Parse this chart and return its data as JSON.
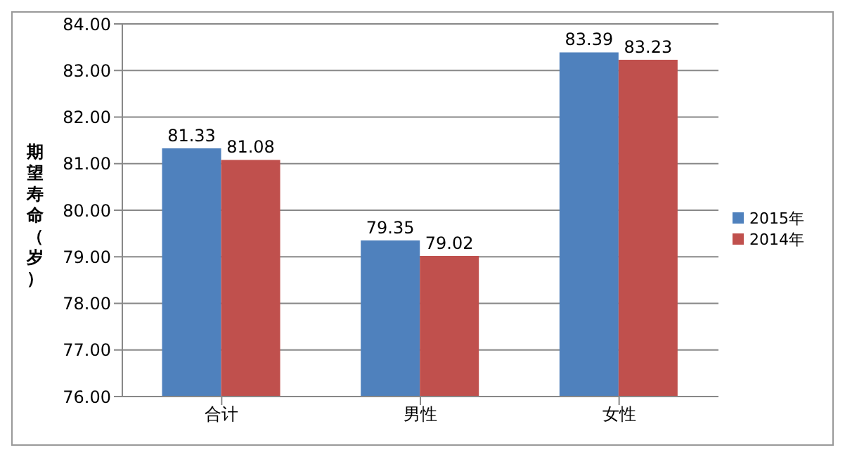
{
  "chart_data": {
    "type": "bar",
    "ylabel": "期望寿命（岁）",
    "categories": [
      "合计",
      "男性",
      "女性"
    ],
    "series": [
      {
        "name": "2015年",
        "color": "#4f81bd",
        "values": [
          81.33,
          79.35,
          83.39
        ]
      },
      {
        "name": "2014年",
        "color": "#c0504d",
        "values": [
          81.08,
          79.02,
          83.23
        ]
      }
    ],
    "ylim": [
      76,
      84
    ],
    "yticks": [
      {
        "value": 76,
        "label": "76.00"
      },
      {
        "value": 77,
        "label": "77.00"
      },
      {
        "value": 78,
        "label": "78.00"
      },
      {
        "value": 79,
        "label": "79.00"
      },
      {
        "value": 80,
        "label": "80.00"
      },
      {
        "value": 81,
        "label": "81.00"
      },
      {
        "value": 82,
        "label": "82.00"
      },
      {
        "value": 83,
        "label": "83.00"
      },
      {
        "value": 84,
        "label": "84.00"
      }
    ],
    "grid": "y",
    "legend": "right",
    "data_labels": true
  }
}
